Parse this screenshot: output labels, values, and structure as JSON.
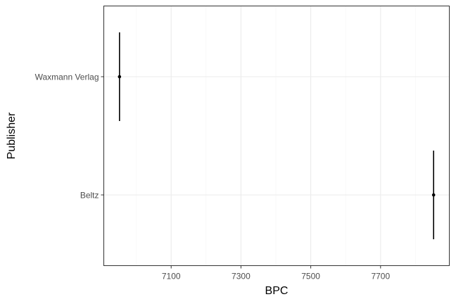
{
  "chart_data": {
    "type": "scatter",
    "title": "",
    "xlabel": "BPC",
    "ylabel": "Publisher",
    "categories": [
      "Waxmann Verlag",
      "Beltz"
    ],
    "points": [
      {
        "category": "Waxmann Verlag",
        "x": 6952,
        "error_range": "vertical bar spanning full category band"
      },
      {
        "category": "Beltz",
        "x": 7852,
        "error_range": "vertical bar spanning full category band"
      }
    ],
    "x_ticks": [
      7100,
      7300,
      7500,
      7700
    ],
    "x_tick_labels": [
      "7100",
      "7300",
      "7500",
      "7700"
    ],
    "xlim": [
      6907,
      7897
    ],
    "grid": true,
    "legend": "none",
    "colors": {
      "background": "#ffffff",
      "panel_border": "#333333",
      "grid_major": "#ebebeb",
      "grid_minor": "#f5f5f5",
      "point": "#000000",
      "errorbar": "#000000"
    }
  }
}
